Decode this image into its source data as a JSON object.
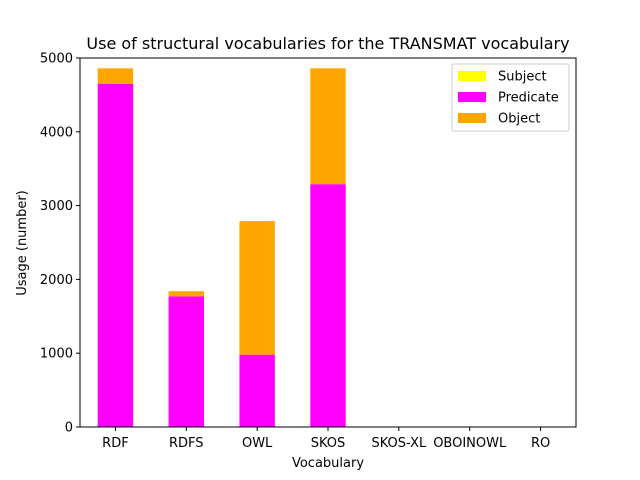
{
  "chart_data": {
    "type": "bar",
    "stacked": true,
    "title": "Use of structural vocabularies for the TRANSMAT vocabulary",
    "xlabel": "Vocabulary",
    "ylabel": "Usage (number)",
    "categories": [
      "RDF",
      "RDFS",
      "OWL",
      "SKOS",
      "SKOS-XL",
      "OBOINOWL",
      "RO"
    ],
    "ylim": [
      0,
      5000
    ],
    "yticks": [
      0,
      1000,
      2000,
      3000,
      4000,
      5000
    ],
    "ytick_labels": [
      "0",
      "1000",
      "2000",
      "3000",
      "4000",
      "5000"
    ],
    "grid": false,
    "legend_position": "top-right",
    "series": [
      {
        "name": "Subject",
        "color": "#ffff00",
        "values": [
          0,
          0,
          0,
          0,
          0,
          0,
          0
        ]
      },
      {
        "name": "Predicate",
        "color": "#ff00ff",
        "values": [
          4650,
          1770,
          980,
          3290,
          0,
          0,
          0
        ]
      },
      {
        "name": "Object",
        "color": "#ffa500",
        "values": [
          210,
          70,
          1810,
          1570,
          0,
          0,
          0
        ]
      }
    ]
  }
}
